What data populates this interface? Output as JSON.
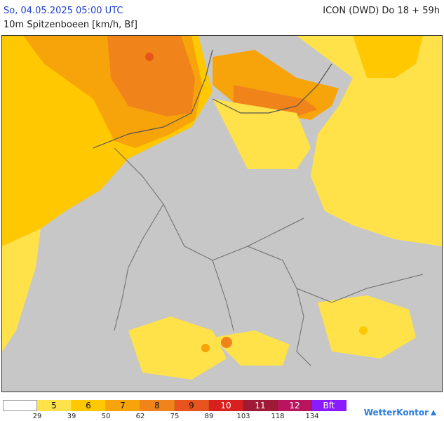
{
  "header": {
    "valid_time": "So, 04.05.2025 05:00 UTC",
    "parameter": "10m Spitzenboeen [km/h, Bf]",
    "model_run": "ICON (DWD) Do 18 + 59h"
  },
  "legend": {
    "bins": [
      {
        "bf": "",
        "color": "#ffffff"
      },
      {
        "bf": "5",
        "color": "#ffe24a"
      },
      {
        "bf": "6",
        "color": "#ffc800"
      },
      {
        "bf": "7",
        "color": "#f7a30a"
      },
      {
        "bf": "8",
        "color": "#f0841a"
      },
      {
        "bf": "9",
        "color": "#e8541e"
      },
      {
        "bf": "10",
        "color": "#d8201e"
      },
      {
        "bf": "11",
        "color": "#9e1a36"
      },
      {
        "bf": "12",
        "color": "#b8155e"
      },
      {
        "bf": "Bft",
        "color": "#8a1aff"
      }
    ],
    "thresholds_kmh": [
      "29",
      "39",
      "50",
      "62",
      "75",
      "89",
      "103",
      "118",
      "134"
    ]
  },
  "brand": {
    "name": "WetterKontor"
  },
  "colors": {
    "land_no_gust": "#c7c7c7",
    "border": "#6b6b6b",
    "coast": "#555555"
  }
}
